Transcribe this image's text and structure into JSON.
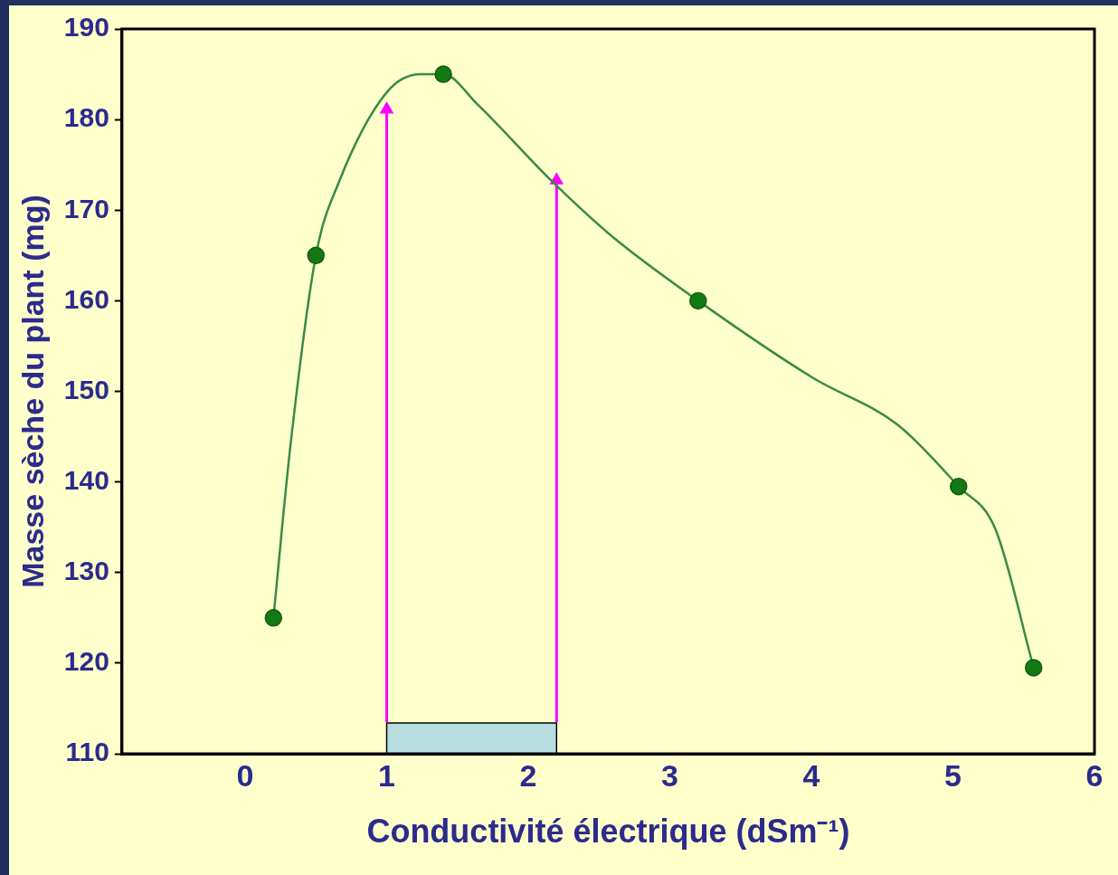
{
  "chart_data": {
    "type": "line",
    "xlabel": "Conductivité électrique (dSm⁻¹)",
    "ylabel": "Masse sèche du plant (mg)",
    "series": [
      {
        "type": "line",
        "color": "#3a8a46",
        "marker": "none",
        "x": [
          0.2,
          0.32,
          0.5,
          0.66,
          1.0,
          1.24,
          1.4,
          1.64,
          2.16,
          2.6,
          3.2,
          4.01,
          4.61,
          5.04,
          5.3,
          5.57
        ],
        "values": [
          125,
          144,
          165,
          173,
          183,
          185,
          185,
          181.7,
          173.3,
          167,
          160,
          151.5,
          146.3,
          139.5,
          134.8,
          119.5
        ]
      },
      {
        "type": "scatter",
        "color": "#137a13",
        "marker": "circle",
        "x": [
          0.2,
          0.5,
          1.4,
          3.2,
          5.04,
          5.57
        ],
        "values": [
          125,
          165,
          185,
          160,
          139.5,
          119.5
        ]
      },
      {
        "type": "line",
        "color": "#ff00ff",
        "marker": "triangle",
        "x": [
          1,
          1
        ],
        "values": [
          113.5,
          181.1
        ]
      },
      {
        "type": "line",
        "color": "#ff00ff",
        "marker": "triangle",
        "x": [
          2.2,
          2.2
        ],
        "values": [
          113.5,
          173.3
        ]
      }
    ],
    "xlim": [
      -0.87,
      6
    ],
    "xticks": [
      0,
      1,
      2,
      3,
      4,
      5,
      6
    ],
    "ylim": [
      110,
      190
    ],
    "yticks": [
      110,
      120,
      130,
      140,
      150,
      160,
      170,
      180,
      190
    ],
    "line_style": "solid",
    "bands": [
      {
        "axis": "x",
        "from": 1,
        "to": 2.2,
        "color": "#b8dde0"
      }
    ]
  }
}
